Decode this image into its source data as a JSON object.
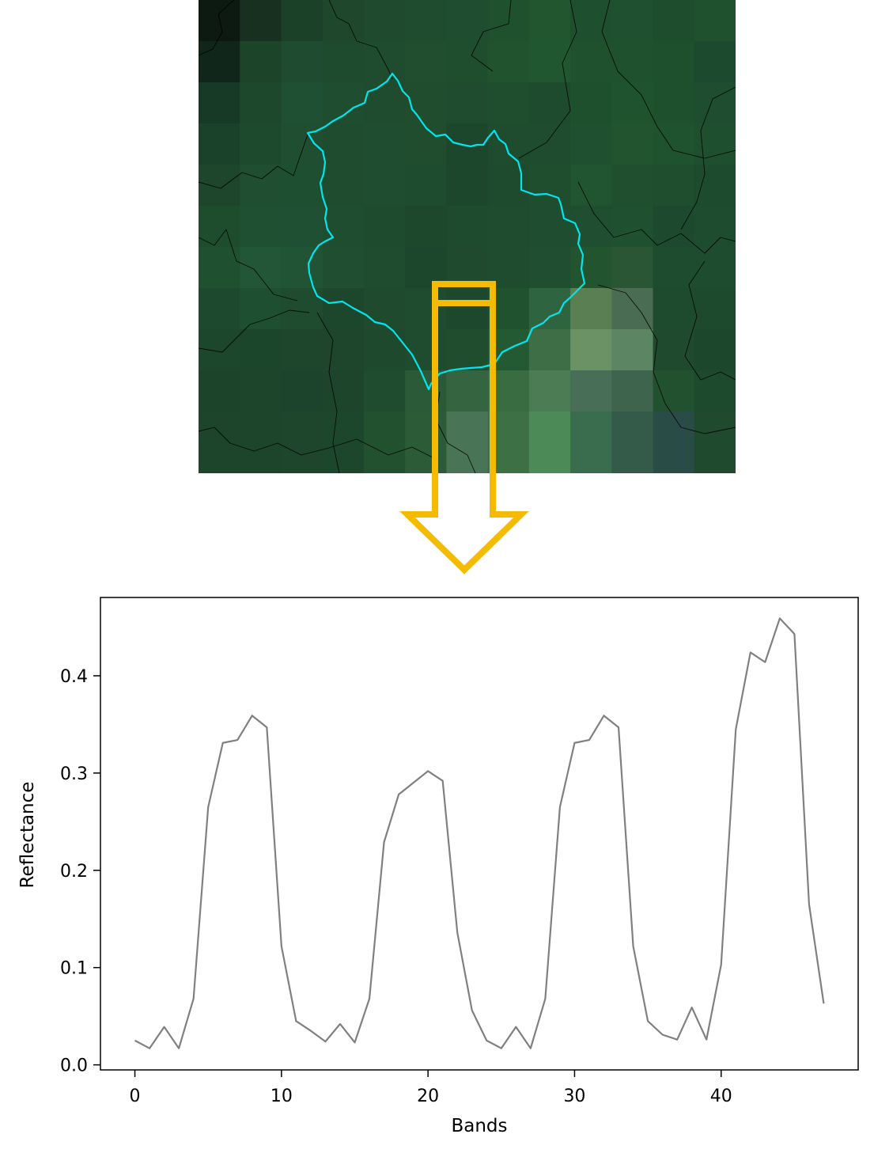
{
  "map": {
    "pixel_grid": [
      [
        "#0d1a12",
        "#17301f",
        "#1c4129",
        "#1e472c",
        "#1f4a2e",
        "#1f4c2e",
        "#1f4d2f",
        "#20512f",
        "#21562f",
        "#1e4f2f",
        "#1f502f",
        "#1e4d2e",
        "#1f512e"
      ],
      [
        "#10261a",
        "#1c4428",
        "#1f4c30",
        "#1e4a2e",
        "#1f4c2e",
        "#204e2e",
        "#1f4e2e",
        "#21532f",
        "#215730",
        "#1f512e",
        "#1f512e",
        "#1e502e",
        "#1c4a2e"
      ],
      [
        "#163a25",
        "#1d482c",
        "#1f5034",
        "#1f4d2f",
        "#1f4c2e",
        "#1f4d2e",
        "#1f4b2e",
        "#1f4e2e",
        "#1e4b2d",
        "#1f502e",
        "#1f522f",
        "#1e502e",
        "#1e4e2f"
      ],
      [
        "#1a4129",
        "#1d4a2d",
        "#1f4e31",
        "#1f4c2f",
        "#1f4d2f",
        "#1f4d2e",
        "#1d472d",
        "#1f4b2e",
        "#1f4c2e",
        "#1f502f",
        "#21542f",
        "#1f522e",
        "#1e4f2e"
      ],
      [
        "#1d462c",
        "#1f4e30",
        "#1f4f31",
        "#1f4c2f",
        "#1f4d2f",
        "#1e4c2f",
        "#1d472d",
        "#1e4a2e",
        "#1f4e2f",
        "#215531",
        "#1f4f2e",
        "#1e4e2e",
        "#1d4b2d"
      ],
      [
        "#1e4d2e",
        "#1f5031",
        "#1f5033",
        "#1f4d2f",
        "#1e4a2e",
        "#1d482c",
        "#1e4a2e",
        "#1f4b2e",
        "#1f4d2f",
        "#1f4f30",
        "#1f502f",
        "#1d4a2e",
        "#1e4c2e"
      ],
      [
        "#1f502f",
        "#225636",
        "#215435",
        "#1f4e30",
        "#1f4b2e",
        "#1d472d",
        "#1f4a2e",
        "#1f4b2e",
        "#1f4e30",
        "#22552f",
        "#2a5635",
        "#1e4c2e",
        "#1e4c2e"
      ],
      [
        "#1d4a2e",
        "#1f4f31",
        "#1f4b2f",
        "#1d472d",
        "#1f4a2e",
        "#1f4b2e",
        "#1e482d",
        "#20522f",
        "#2e6440",
        "#5a7f52",
        "#4a6c52",
        "#1e4a2e",
        "#1d4a2d"
      ],
      [
        "#1c472c",
        "#1c462c",
        "#1d462c",
        "#1d462c",
        "#1e492d",
        "#1f4b2e",
        "#1f4d2e",
        "#245a33",
        "#3d6e45",
        "#6a9264",
        "#5c8564",
        "#1f4a2e",
        "#1c472c"
      ],
      [
        "#1b442b",
        "#1c452b",
        "#1c432b",
        "#1d452c",
        "#1f4b2e",
        "#2a5a37",
        "#356441",
        "#3a6c42",
        "#4b7c54",
        "#496e57",
        "#3f644e",
        "#22512f",
        "#1d492d"
      ],
      [
        "#1c452b",
        "#1c452b",
        "#1d462c",
        "#1d472c",
        "#21512f",
        "#2c5b37",
        "#4a7456",
        "#3e7046",
        "#4c8a58",
        "#3a6c4e",
        "#345a4a",
        "#2a4c46",
        "#1f4a2e"
      ],
      [
        "#1c452b",
        "#1c452b",
        "#1d462c",
        "#1d472c",
        "#21512f",
        "#2c5b37",
        "#4a7456",
        "#3e7046",
        "#4c8a58",
        "#3a6c4e",
        "#345a4a",
        "#2a4c46",
        "#1f4a2e"
      ]
    ],
    "outline_color": "#00e5ee",
    "boundary_color": "#000000"
  },
  "arrow": {
    "color": "#f5bb00"
  },
  "chart_data": {
    "type": "line",
    "xlabel": "Bands",
    "ylabel": "Reflectance",
    "xlim": [
      -2.35,
      49.35
    ],
    "ylim": [
      -0.0052,
      0.4805
    ],
    "x_ticks": [
      0,
      10,
      20,
      30,
      40
    ],
    "y_ticks": [
      0.0,
      0.1,
      0.2,
      0.3,
      0.4
    ],
    "y_tick_labels": [
      "0.0",
      "0.1",
      "0.2",
      "0.3",
      "0.4"
    ],
    "series": [
      {
        "color": "#808080",
        "x": [
          0,
          1,
          2,
          3,
          4,
          5,
          6,
          7,
          8,
          9,
          10,
          11,
          12,
          13,
          14,
          15,
          16,
          17,
          18,
          19,
          20,
          21,
          22,
          23,
          24,
          25,
          26,
          27,
          28,
          29,
          30,
          31,
          32,
          33,
          34,
          35,
          36,
          37,
          38,
          39,
          40,
          41,
          42,
          43,
          44,
          45,
          46,
          47
        ],
        "values": [
          0.025,
          0.017,
          0.039,
          0.017,
          0.068,
          0.265,
          0.331,
          0.334,
          0.359,
          0.347,
          0.122,
          0.045,
          0.035,
          0.024,
          0.042,
          0.023,
          0.068,
          0.229,
          0.278,
          0.29,
          0.302,
          0.292,
          0.136,
          0.056,
          0.025,
          0.017,
          0.039,
          0.017,
          0.068,
          0.265,
          0.331,
          0.334,
          0.359,
          0.347,
          0.122,
          0.045,
          0.031,
          0.026,
          0.059,
          0.026,
          0.103,
          0.345,
          0.424,
          0.414,
          0.459,
          0.443,
          0.165,
          0.063
        ]
      }
    ]
  }
}
